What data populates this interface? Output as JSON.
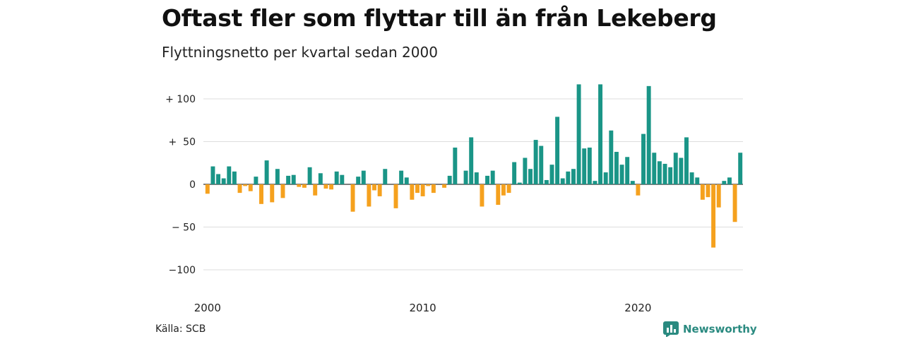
{
  "title": "Oftast fler som flyttar till än från Lekeberg",
  "subtitle": "Flyttningsnetto per kvartal sedan 2000",
  "source": "Källa: SCB",
  "brand": "Newsworthy",
  "colors": {
    "positive": "#1a9587",
    "negative": "#f5a11e",
    "grid": "#dddddd",
    "zero": "#333333",
    "brand": "#2a8a80"
  },
  "chart_data": {
    "type": "bar",
    "x_start": "2000 Q1",
    "x_ticks": [
      "2000",
      "2010",
      "2020"
    ],
    "y_ticks": [
      100,
      50,
      0,
      -50,
      -100
    ],
    "y_tick_labels": [
      "+ 100",
      "+  50",
      "0",
      "− 50",
      "−100"
    ],
    "ylim": [
      -118,
      125
    ],
    "grid": true,
    "values": [
      -11,
      21,
      12,
      7,
      21,
      15,
      -10,
      -2,
      -8,
      9,
      -23,
      28,
      -21,
      18,
      -16,
      10,
      11,
      -3,
      -4,
      20,
      -13,
      13,
      -5,
      -6,
      15,
      11,
      0,
      -32,
      9,
      16,
      -26,
      -7,
      -14,
      18,
      0,
      -28,
      16,
      8,
      -18,
      -10,
      -14,
      -2,
      -10,
      0,
      -4,
      10,
      43,
      0,
      16,
      55,
      14,
      -26,
      10,
      16,
      -24,
      -13,
      -10,
      26,
      2,
      31,
      18,
      52,
      45,
      5,
      23,
      79,
      7,
      15,
      18,
      117,
      42,
      43,
      4,
      117,
      14,
      63,
      38,
      23,
      32,
      4,
      -13,
      59,
      115,
      37,
      27,
      24,
      20,
      37,
      31,
      55,
      14,
      8,
      -18,
      -15,
      -74,
      -27,
      4,
      8,
      -44,
      37
    ]
  }
}
